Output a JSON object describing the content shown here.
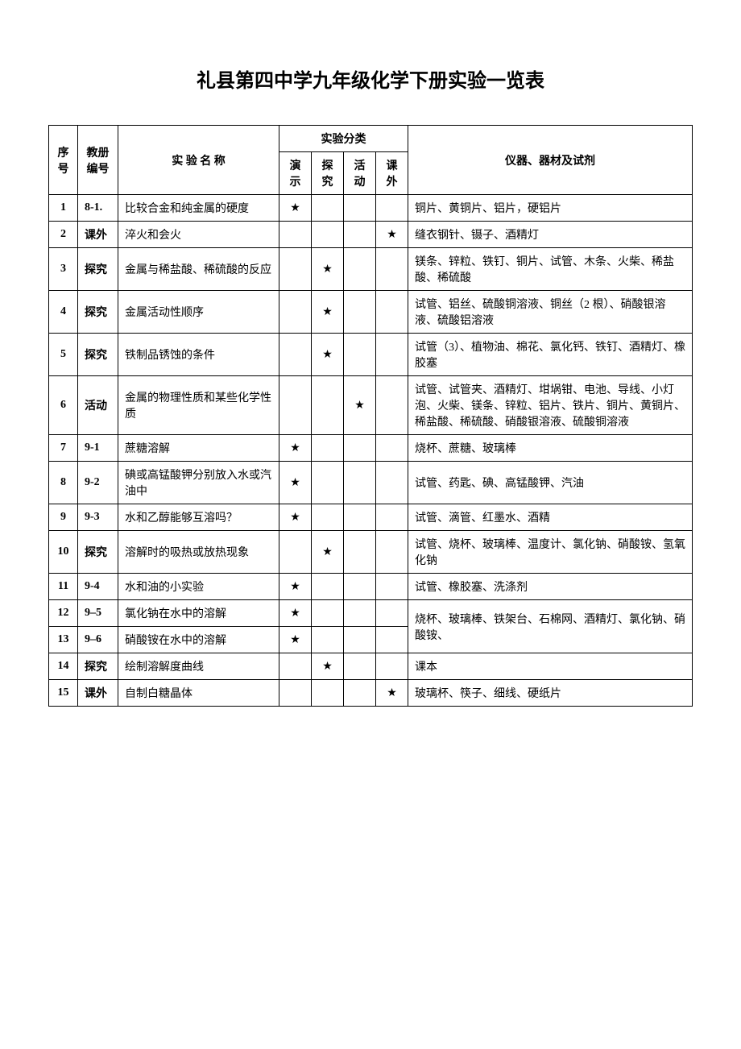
{
  "title": "礼县第四中学九年级化学下册实验一览表",
  "headers": {
    "seq": "序号",
    "book": "教册编号",
    "name": "实 验 名 称",
    "category_group": "实验分类",
    "cat_demo": "演示",
    "cat_explore": "探究",
    "cat_activity": "活动",
    "cat_extra": "课外",
    "equipment": "仪器、器材及试剂"
  },
  "star": "★",
  "rows": [
    {
      "seq": "1",
      "book": "8-1.",
      "name": "比较合金和纯金属的硬度",
      "cat": "demo",
      "equip": "铜片、黄铜片、铝片，硬铝片"
    },
    {
      "seq": "2",
      "book": "课外",
      "name": "淬火和会火",
      "cat": "extra",
      "equip": "缝衣钢针、镊子、酒精灯"
    },
    {
      "seq": "3",
      "book": "探究",
      "name": "金属与稀盐酸、稀硫酸的反应",
      "cat": "explore",
      "equip": "镁条、锌粒、铁钉、铜片、试管、木条、火柴、稀盐酸、稀硫酸"
    },
    {
      "seq": "4",
      "book": "探究",
      "name": "金属活动性顺序",
      "cat": "explore",
      "equip": "试管、铝丝、硫酸铜溶液、铜丝（2 根）、硝酸银溶液、硫酸铝溶液"
    },
    {
      "seq": "5",
      "book": "探究",
      "name": "铁制品锈蚀的条件",
      "cat": "explore",
      "equip": "试管（3）、植物油、棉花、氯化钙、铁钉、酒精灯、橡胶塞"
    },
    {
      "seq": "6",
      "book": "活动",
      "name": "金属的物理性质和某些化学性质",
      "cat": "activity",
      "equip": "试管、试管夹、酒精灯、坩埚钳、电池、导线、小灯泡、火柴、镁条、锌粒、铝片、铁片、铜片、黄铜片、稀盐酸、稀硫酸、硝酸银溶液、硫酸铜溶液"
    },
    {
      "seq": "7",
      "book": "9-1",
      "name": "蔗糖溶解",
      "cat": "demo",
      "equip": "烧杯、蔗糖、玻璃棒"
    },
    {
      "seq": "8",
      "book": "9-2",
      "name": "碘或高锰酸钾分别放入水或汽油中",
      "cat": "demo",
      "equip": "试管、药匙、碘、高锰酸钾、汽油"
    },
    {
      "seq": "9",
      "book": "9-3",
      "name": "水和乙醇能够互溶吗？",
      "cat": "demo",
      "equip": "试管、滴管、红墨水、酒精"
    },
    {
      "seq": "10",
      "book": "探究",
      "name": "溶解时的吸热或放热现象",
      "cat": "explore",
      "equip": "试管、烧杯、玻璃棒、温度计、氯化钠、硝酸铵、氢氧化钠"
    },
    {
      "seq": "11",
      "book": "9-4",
      "name": "水和油的小实验",
      "cat": "demo",
      "equip": "试管、橡胶塞、洗涤剂"
    },
    {
      "seq": "12",
      "book": "9–5",
      "name": "氯化钠在水中的溶解",
      "cat": "demo",
      "equip_span": 2,
      "equip": "烧杯、玻璃棒、铁架台、石棉网、酒精灯、氯化钠、硝酸铵、"
    },
    {
      "seq": "13",
      "book": "9–6",
      "name": "硝酸铵在水中的溶解",
      "cat": "demo",
      "equip_skip": true
    },
    {
      "seq": "14",
      "book": "探究",
      "name": "绘制溶解度曲线",
      "cat": "explore",
      "equip": "课本"
    },
    {
      "seq": "15",
      "book": "课外",
      "name": "自制白糖晶体",
      "cat": "extra",
      "equip": "玻璃杯、筷子、细线、硬纸片"
    }
  ]
}
